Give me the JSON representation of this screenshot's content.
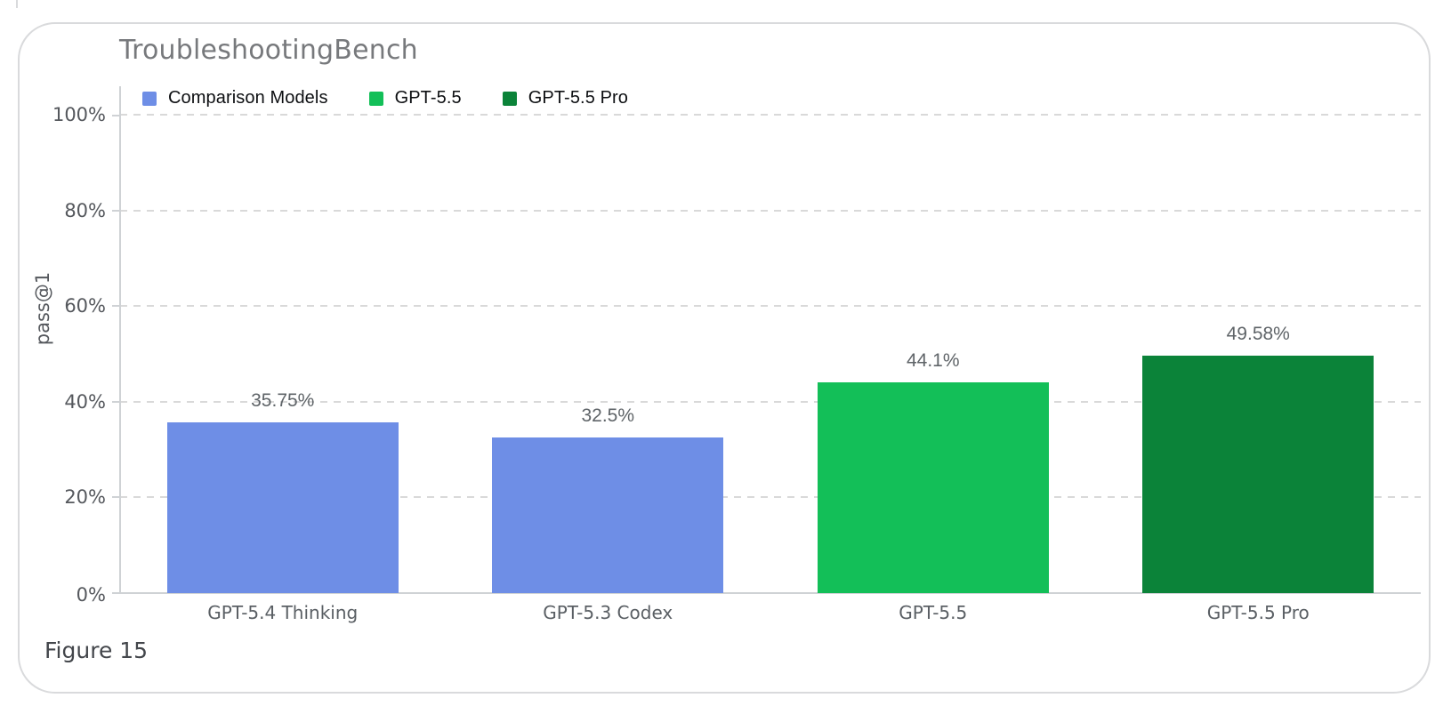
{
  "figure": {
    "caption": "Figure 15"
  },
  "chart": {
    "title": "TroubleshootingBench",
    "ylabel": "pass@1",
    "yticks": [
      "100%",
      "80%",
      "60%",
      "40%",
      "20%",
      "0%"
    ],
    "legend": [
      {
        "label": "Comparison Models",
        "color": "#6e8ee6"
      },
      {
        "label": "GPT-5.5",
        "color": "#13bf58"
      },
      {
        "label": "GPT-5.5 Pro",
        "color": "#0b8339"
      }
    ]
  },
  "chart_data": {
    "type": "bar",
    "title": "TroubleshootingBench",
    "xlabel": "",
    "ylabel": "pass@1",
    "ylim": [
      0,
      100
    ],
    "ytick_values": [
      0,
      20,
      40,
      60,
      80,
      100
    ],
    "grid": "horizontal dashed",
    "legend_position": "top-left inside plot",
    "categories": [
      "GPT-5.4 Thinking",
      "GPT-5.3 Codex",
      "GPT-5.5",
      "GPT-5.5 Pro"
    ],
    "values": [
      35.75,
      32.5,
      44.1,
      49.58
    ],
    "value_labels": [
      "35.75%",
      "32.5%",
      "44.1%",
      "49.58%"
    ],
    "bar_colors": [
      "#6e8ee6",
      "#6e8ee6",
      "#13bf58",
      "#0b8339"
    ],
    "series_membership": [
      "Comparison Models",
      "Comparison Models",
      "GPT-5.5",
      "GPT-5.5 Pro"
    ]
  }
}
